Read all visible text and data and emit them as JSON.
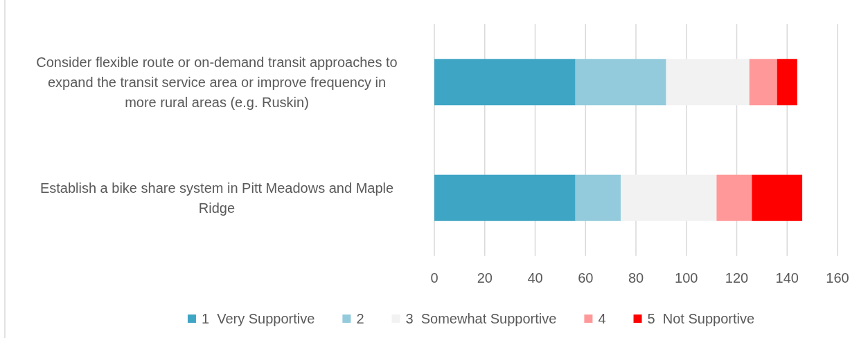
{
  "chart_data": {
    "type": "bar",
    "orientation": "horizontal",
    "stacked": true,
    "categories": [
      "Consider flexible route or on-demand transit approaches to expand the transit service area or improve frequency in more rural areas (e.g. Ruskin)",
      "Establish a bike share system in Pitt Meadows and Maple Ridge"
    ],
    "series": [
      {
        "name": "1  Very Supportive",
        "color": "#3fa5c4",
        "values": [
          56,
          56
        ]
      },
      {
        "name": "2",
        "color": "#93cbdc",
        "values": [
          36,
          18
        ]
      },
      {
        "name": "3  Somewhat Supportive",
        "color": "#f2f2f2",
        "values": [
          33,
          38
        ]
      },
      {
        "name": "4",
        "color": "#ff9999",
        "values": [
          11,
          14
        ]
      },
      {
        "name": "5  Not Supportive",
        "color": "#ff0000",
        "values": [
          8,
          20
        ]
      }
    ],
    "xlim": [
      0,
      160
    ],
    "xticks": [
      0,
      20,
      40,
      60,
      80,
      100,
      120,
      140,
      160
    ],
    "grid": "x",
    "legend": "bottom"
  }
}
